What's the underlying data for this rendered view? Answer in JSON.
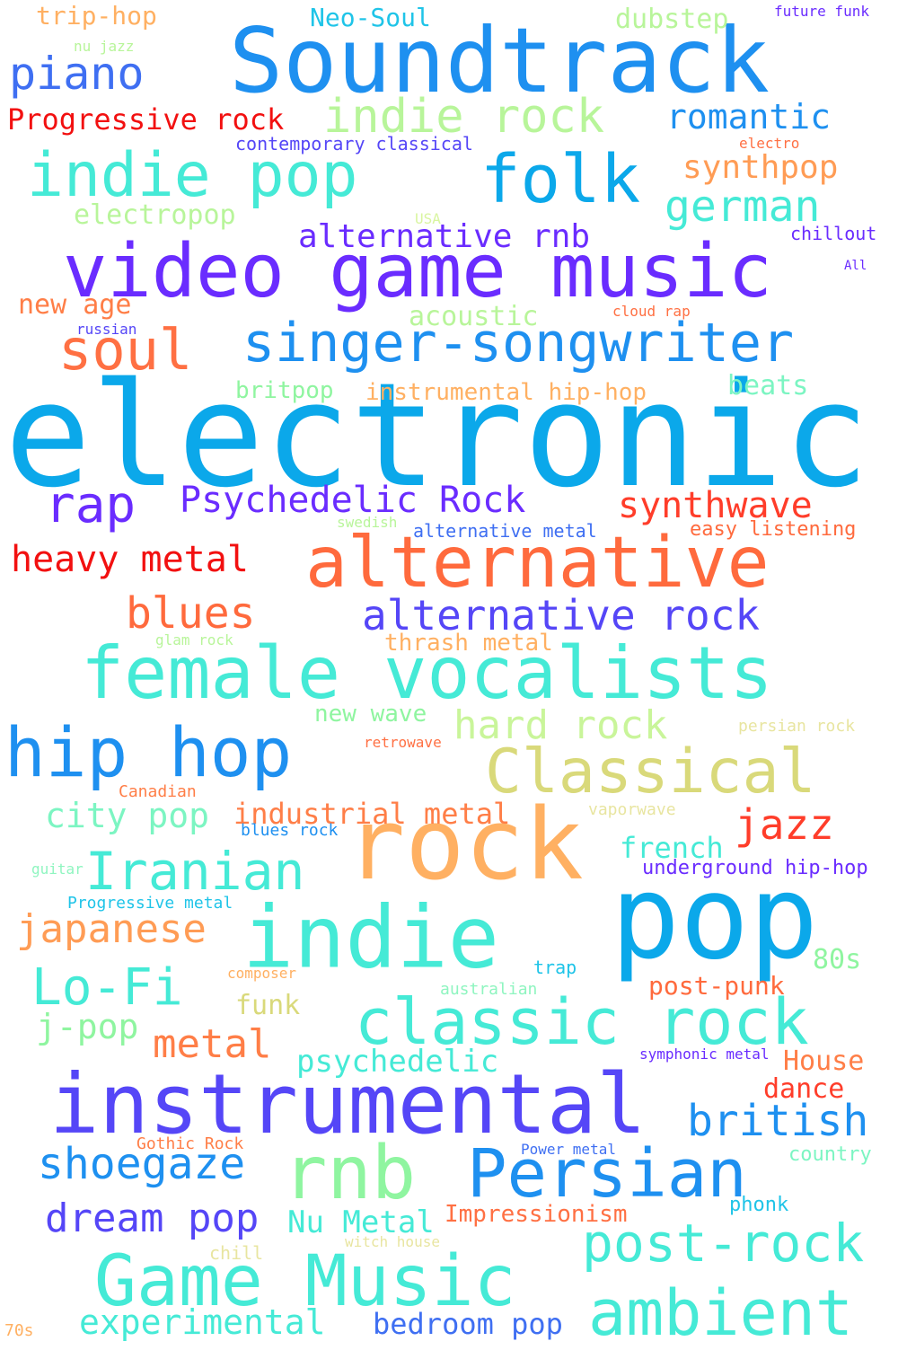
{
  "words": [
    {
      "text": "electronic",
      "color": "#0ba8ea"
    },
    {
      "text": "Soundtrack",
      "color": "#1e90f0"
    },
    {
      "text": "video game music",
      "color": "#6a2cff"
    },
    {
      "text": "female vocalists",
      "color": "#45ead6"
    },
    {
      "text": "pop",
      "color": "#0ba8ea"
    },
    {
      "text": "rock",
      "color": "#ffb062"
    },
    {
      "text": "indie",
      "color": "#45ead6"
    },
    {
      "text": "instrumental",
      "color": "#5546f7"
    },
    {
      "text": "alternative",
      "color": "#ff6a3d"
    },
    {
      "text": "singer-songwriter",
      "color": "#1e90f0"
    },
    {
      "text": "indie pop",
      "color": "#45ead6"
    },
    {
      "text": "folk",
      "color": "#0ba8ea"
    },
    {
      "text": "hip hop",
      "color": "#1e90f0"
    },
    {
      "text": "Classical",
      "color": "#d9d97a"
    },
    {
      "text": "classic rock",
      "color": "#45ead6"
    },
    {
      "text": "Game Music",
      "color": "#45ead6"
    },
    {
      "text": "ambient",
      "color": "#45ead6"
    },
    {
      "text": "Persian",
      "color": "#1e90f0"
    },
    {
      "text": "rnb",
      "color": "#8ff5a0"
    },
    {
      "text": "soul",
      "color": "#ff7043"
    },
    {
      "text": "indie rock",
      "color": "#b8f59a"
    },
    {
      "text": "Iranian",
      "color": "#45ead6"
    },
    {
      "text": "Lo-Fi",
      "color": "#45ead6"
    },
    {
      "text": "post-rock",
      "color": "#45ead6"
    },
    {
      "text": "rap",
      "color": "#6a2cff"
    },
    {
      "text": "Psychedelic Rock",
      "color": "#6a2cff"
    },
    {
      "text": "alternative rock",
      "color": "#5546f7"
    },
    {
      "text": "blues",
      "color": "#ff6a3d"
    },
    {
      "text": "synthwave",
      "color": "#ff3d2a"
    },
    {
      "text": "piano",
      "color": "#3f6ff2"
    },
    {
      "text": "romantic",
      "color": "#1e90f0"
    },
    {
      "text": "german",
      "color": "#45ead6"
    },
    {
      "text": "heavy metal",
      "color": "#f21010"
    },
    {
      "text": "jazz",
      "color": "#ff3d2a"
    },
    {
      "text": "japanese",
      "color": "#ff9c55"
    },
    {
      "text": "metal",
      "color": "#ff7e47"
    },
    {
      "text": "hard rock",
      "color": "#c9f59a"
    },
    {
      "text": "british",
      "color": "#1e90f0"
    },
    {
      "text": "shoegaze",
      "color": "#1e90f0"
    },
    {
      "text": "dream pop",
      "color": "#5546f7"
    },
    {
      "text": "experimental",
      "color": "#45ead6"
    },
    {
      "text": "alternative rnb",
      "color": "#6a2cff"
    },
    {
      "text": "synthpop",
      "color": "#ff9c55"
    },
    {
      "text": "city pop",
      "color": "#7cf5c2"
    },
    {
      "text": "j-pop",
      "color": "#8ff5a0"
    },
    {
      "text": "Nu Metal",
      "color": "#45ead6"
    },
    {
      "text": "psychedelic",
      "color": "#45ead6"
    },
    {
      "text": "industrial metal",
      "color": "#ff7e47"
    },
    {
      "text": "french",
      "color": "#45ead6"
    },
    {
      "text": "bedroom pop",
      "color": "#3f6ff2"
    },
    {
      "text": "Progressive rock",
      "color": "#f21010"
    },
    {
      "text": "electropop",
      "color": "#b8f59a"
    },
    {
      "text": "acoustic",
      "color": "#b8f59a"
    },
    {
      "text": "new age",
      "color": "#ff7e47"
    },
    {
      "text": "instrumental hip-hop",
      "color": "#ffb062"
    },
    {
      "text": "beats",
      "color": "#7cf5c2"
    },
    {
      "text": "britpop",
      "color": "#8ff5a0"
    },
    {
      "text": "new wave",
      "color": "#8ff5a0"
    },
    {
      "text": "thrash metal",
      "color": "#ffb062"
    },
    {
      "text": "funk",
      "color": "#d9d97a"
    },
    {
      "text": "80s",
      "color": "#8ff5a0"
    },
    {
      "text": "post-punk",
      "color": "#ff6a3d"
    },
    {
      "text": "House",
      "color": "#ff7e47"
    },
    {
      "text": "dance",
      "color": "#ff3d2a"
    },
    {
      "text": "Impressionism",
      "color": "#ff7043"
    },
    {
      "text": "trip-hop",
      "color": "#ffb062"
    },
    {
      "text": "Neo-Soul",
      "color": "#1fc4e8"
    },
    {
      "text": "dubstep",
      "color": "#b8f59a"
    },
    {
      "text": "underground hip-hop",
      "color": "#6a2cff"
    },
    {
      "text": "easy listening",
      "color": "#ff6a3d"
    },
    {
      "text": "alternative metal",
      "color": "#3f6ff2"
    },
    {
      "text": "contemporary classical",
      "color": "#5546f7"
    },
    {
      "text": "chillout",
      "color": "#6a2cff"
    },
    {
      "text": "country",
      "color": "#7cf5c2"
    },
    {
      "text": "phonk",
      "color": "#1fc4e8"
    },
    {
      "text": "future funk",
      "color": "#6a2cff"
    },
    {
      "text": "nu jazz",
      "color": "#b8f59a"
    },
    {
      "text": "electro",
      "color": "#ff7043"
    },
    {
      "text": "USA",
      "color": "#d9f5a0"
    },
    {
      "text": "All",
      "color": "#6a2cff"
    },
    {
      "text": "cloud rap",
      "color": "#ff7043"
    },
    {
      "text": "russian",
      "color": "#5546f7"
    },
    {
      "text": "swedish",
      "color": "#b8f59a"
    },
    {
      "text": "glam rock",
      "color": "#b8f59a"
    },
    {
      "text": "persian rock",
      "color": "#e8e5a0"
    },
    {
      "text": "retrowave",
      "color": "#ff7043"
    },
    {
      "text": "Canadian",
      "color": "#ff7e47"
    },
    {
      "text": "vaporwave",
      "color": "#e8e5a0"
    },
    {
      "text": "blues rock",
      "color": "#1e90f0"
    },
    {
      "text": "guitar",
      "color": "#8ff5c0"
    },
    {
      "text": "Progressive metal",
      "color": "#1fc4e8"
    },
    {
      "text": "composer",
      "color": "#ffb062"
    },
    {
      "text": "trap",
      "color": "#1fc4e8"
    },
    {
      "text": "australian",
      "color": "#8ff5c0"
    },
    {
      "text": "symphonic metal",
      "color": "#6a2cff"
    },
    {
      "text": "Gothic Rock",
      "color": "#ff7e47"
    },
    {
      "text": "Power metal",
      "color": "#3f6ff2"
    },
    {
      "text": "chill",
      "color": "#e8e5a0"
    },
    {
      "text": "witch house",
      "color": "#e8e5a0"
    },
    {
      "text": "70s",
      "color": "#ffb062"
    }
  ]
}
